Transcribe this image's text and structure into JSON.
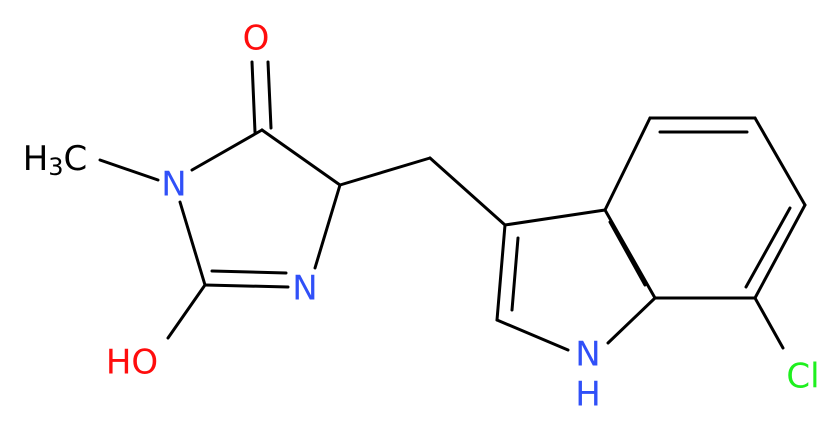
{
  "atoms": [
    {
      "label": "O"
    },
    {
      "label": "H",
      "subscript": "3",
      "tail": "C"
    },
    {
      "label": "N"
    },
    {
      "label": "N"
    },
    {
      "label": "HO"
    },
    {
      "label": "N",
      "below": "H"
    },
    {
      "label": "Cl"
    }
  ]
}
